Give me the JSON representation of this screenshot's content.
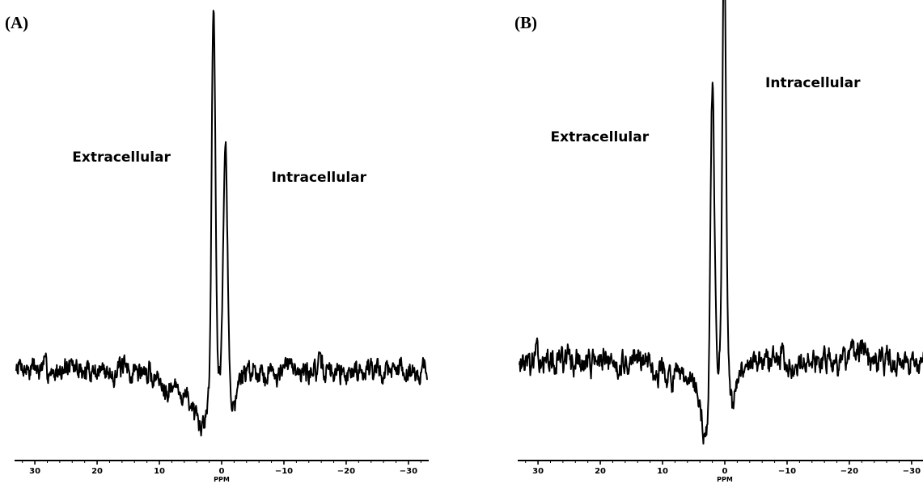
{
  "chart_data": [
    {
      "type": "line",
      "panel_label": "(A)",
      "xlabel": "PPM",
      "x_reversed": true,
      "xlim": [
        33,
        -33
      ],
      "xticks": [
        30,
        20,
        10,
        0,
        -10,
        -20,
        -30
      ],
      "ylim": [
        0,
        1
      ],
      "annotations": [
        {
          "text": "Extracellular",
          "x": 24.0,
          "y": 0.72
        },
        {
          "text": "Intracellular",
          "x": -8.0,
          "y": 0.67
        }
      ],
      "peaks": [
        {
          "ppm": 1.3,
          "height": 0.93,
          "width": 0.42
        },
        {
          "ppm": -0.6,
          "height": 0.61,
          "width": 0.48
        }
      ],
      "dips": [
        {
          "ppm": 3.5,
          "depth": 0.11,
          "width": 1.1
        },
        {
          "ppm": -1.9,
          "depth": 0.08,
          "width": 0.9
        }
      ],
      "baseline": {
        "level": 0.205,
        "amplitude": 0.03,
        "slope_left_drop": 0.06,
        "seed": 7
      },
      "series": [
        {
          "values_generated": true
        }
      ]
    },
    {
      "type": "line",
      "panel_label": "(B)",
      "xlabel": "PPM",
      "x_reversed": true,
      "xlim": [
        33,
        -33
      ],
      "xticks": [
        30,
        20,
        10,
        0,
        -10,
        -20,
        -30
      ],
      "ylim": [
        0,
        1
      ],
      "annotations": [
        {
          "text": "Extracellular",
          "x": 28.0,
          "y": 0.69
        },
        {
          "text": "Intracellular",
          "x": -6.5,
          "y": 0.81
        }
      ],
      "peaks": [
        {
          "ppm": 2.0,
          "height": 0.69,
          "width": 0.45
        },
        {
          "ppm": 0.1,
          "height": 0.99,
          "width": 0.4
        }
      ],
      "dips": [
        {
          "ppm": 3.0,
          "depth": 0.12,
          "width": 1.0
        },
        {
          "ppm": -1.4,
          "depth": 0.1,
          "width": 0.9
        }
      ],
      "baseline": {
        "level": 0.205,
        "amplitude": 0.03,
        "slope_left_drop": 0.06,
        "seed": 13
      },
      "series": [
        {
          "values_generated": true
        }
      ]
    }
  ]
}
